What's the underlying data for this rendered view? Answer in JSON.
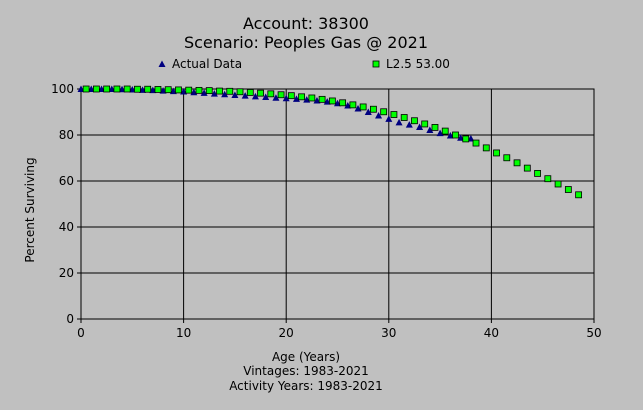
{
  "chart_data": {
    "type": "scatter",
    "title": "Account: 38300",
    "subtitle": "Scenario: Peoples Gas @ 2021",
    "xlabel": "Age (Years)",
    "ylabel": "Percent Surviving",
    "footnotes": [
      "Vintages: 1983-2021",
      "Activity Years: 1983-2021"
    ],
    "xlim": [
      0,
      50
    ],
    "ylim": [
      0,
      100
    ],
    "x_ticks": [
      0,
      10,
      20,
      30,
      40,
      50
    ],
    "y_ticks": [
      0,
      20,
      40,
      60,
      80,
      100
    ],
    "grid": true,
    "legend_position": "top",
    "series": [
      {
        "name": "Actual Data",
        "marker": "triangle",
        "color": "#000080",
        "x": [
          0,
          1,
          2,
          3,
          4,
          5,
          6,
          7,
          8,
          9,
          10,
          11,
          12,
          13,
          14,
          15,
          16,
          17,
          18,
          19,
          20,
          21,
          22,
          23,
          24,
          25,
          26,
          27,
          28,
          29,
          30,
          31,
          32,
          33,
          34,
          35,
          36,
          37,
          38
        ],
        "y": [
          100,
          100,
          100,
          100,
          99.9,
          99.8,
          99.6,
          99.5,
          99.3,
          99.1,
          98.9,
          98.6,
          98.3,
          98.0,
          97.7,
          97.4,
          97.1,
          96.8,
          96.5,
          96.2,
          96.0,
          95.7,
          95.4,
          95.0,
          94.5,
          93.8,
          92.8,
          91.5,
          90.0,
          88.5,
          87.0,
          85.5,
          84.5,
          83.5,
          82.2,
          80.8,
          79.8,
          78.8,
          78.5
        ]
      },
      {
        "name": "L2.5 53.00",
        "marker": "square",
        "color": "#00ff00",
        "x": [
          0.5,
          1.5,
          2.5,
          3.5,
          4.5,
          5.5,
          6.5,
          7.5,
          8.5,
          9.5,
          10.5,
          11.5,
          12.5,
          13.5,
          14.5,
          15.5,
          16.5,
          17.5,
          18.5,
          19.5,
          20.5,
          21.5,
          22.5,
          23.5,
          24.5,
          25.5,
          26.5,
          27.5,
          28.5,
          29.5,
          30.5,
          31.5,
          32.5,
          33.5,
          34.5,
          35.5,
          36.5,
          37.5,
          38.5,
          39.5,
          40.5,
          41.5,
          42.5,
          43.5,
          44.5,
          45.5,
          46.5,
          47.5,
          48.5
        ],
        "y": [
          100,
          100,
          100,
          100,
          100,
          99.9,
          99.9,
          99.8,
          99.7,
          99.6,
          99.5,
          99.4,
          99.3,
          99.1,
          99.0,
          98.8,
          98.5,
          98.2,
          97.9,
          97.5,
          97.1,
          96.6,
          96.1,
          95.5,
          94.8,
          94.0,
          93.1,
          92.2,
          91.2,
          90.1,
          88.9,
          87.6,
          86.2,
          84.8,
          83.3,
          81.7,
          80.0,
          78.3,
          76.5,
          74.4,
          72.2,
          70.1,
          67.9,
          65.6,
          63.3,
          61.0,
          58.7,
          56.3,
          54.0
        ]
      }
    ]
  }
}
